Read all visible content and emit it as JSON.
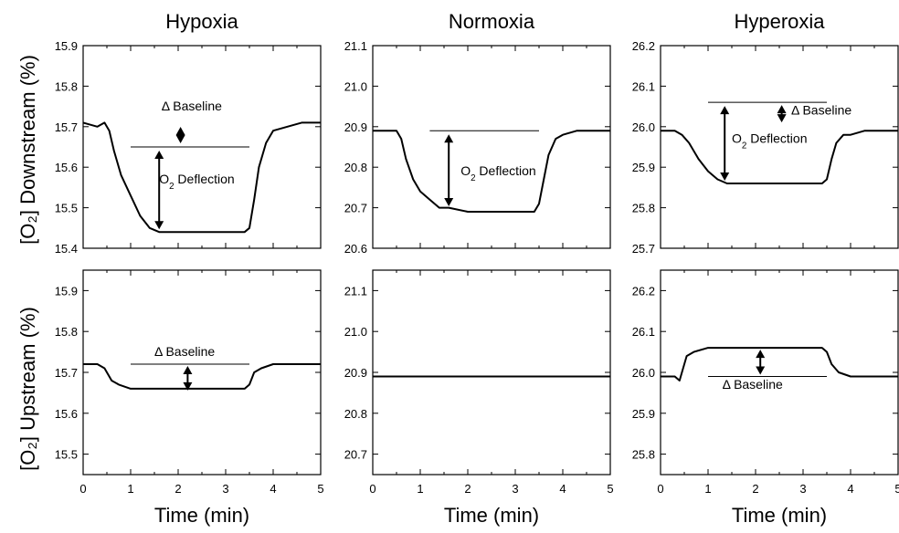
{
  "ylabel_top": "[O₂] Downstream  (%)",
  "ylabel_bottom": "[O₂] Upstream  (%)",
  "xlabel": "Time  (min)",
  "chart_data": [
    {
      "type": "line",
      "title": "Hypoxia",
      "row": "downstream",
      "xlim": [
        0,
        5
      ],
      "ylim": [
        15.4,
        15.9
      ],
      "xticks": [
        "0",
        "1",
        "2",
        "3",
        "4",
        "5"
      ],
      "yticks": [
        "15.4",
        "15.5",
        "15.6",
        "15.7",
        "15.8",
        "15.9"
      ],
      "series": [
        {
          "x": [
            0,
            0.3,
            0.45,
            0.55,
            0.65,
            0.8,
            1.0,
            1.2,
            1.4,
            1.6,
            2.0,
            2.5,
            3.0,
            3.4,
            3.5,
            3.6,
            3.7,
            3.85,
            4.0,
            4.3,
            4.6,
            5.0
          ],
          "y": [
            15.71,
            15.7,
            15.71,
            15.69,
            15.64,
            15.58,
            15.53,
            15.48,
            15.45,
            15.44,
            15.44,
            15.44,
            15.44,
            15.44,
            15.45,
            15.52,
            15.6,
            15.66,
            15.69,
            15.7,
            15.71,
            15.71
          ]
        }
      ],
      "baseline": {
        "x1": 1.0,
        "x2": 3.5,
        "y": 15.65
      },
      "annotations": [
        {
          "text": "Δ Baseline",
          "x": 1.65,
          "y": 15.74
        },
        {
          "text": "O₂ Deflection",
          "x": 1.6,
          "y": 15.56
        }
      ]
    },
    {
      "type": "line",
      "title": "Normoxia",
      "row": "downstream",
      "xlim": [
        0,
        5
      ],
      "ylim": [
        20.6,
        21.1
      ],
      "xticks": [
        "0",
        "1",
        "2",
        "3",
        "4",
        "5"
      ],
      "yticks": [
        "20.6",
        "20.7",
        "20.8",
        "20.9",
        "21.0",
        "21.1"
      ],
      "series": [
        {
          "x": [
            0,
            0.3,
            0.5,
            0.6,
            0.7,
            0.85,
            1.0,
            1.2,
            1.4,
            1.6,
            2.0,
            2.5,
            3.0,
            3.4,
            3.5,
            3.6,
            3.7,
            3.85,
            4.0,
            4.3,
            4.6,
            5.0
          ],
          "y": [
            20.89,
            20.89,
            20.89,
            20.87,
            20.82,
            20.77,
            20.74,
            20.72,
            20.7,
            20.7,
            20.69,
            20.69,
            20.69,
            20.69,
            20.71,
            20.77,
            20.83,
            20.87,
            20.88,
            20.89,
            20.89,
            20.89
          ]
        }
      ],
      "baseline": {
        "x1": 1.2,
        "x2": 3.5,
        "y": 20.89
      },
      "annotations": [
        {
          "text": "O₂ Deflection",
          "x": 1.85,
          "y": 20.78
        }
      ]
    },
    {
      "type": "line",
      "title": "Hyperoxia",
      "row": "downstream",
      "xlim": [
        0,
        5
      ],
      "ylim": [
        25.7,
        26.2
      ],
      "xticks": [
        "0",
        "1",
        "2",
        "3",
        "4",
        "5"
      ],
      "yticks": [
        "25.7",
        "25.8",
        "25.9",
        "26.0",
        "26.1",
        "26.2"
      ],
      "series": [
        {
          "x": [
            0,
            0.3,
            0.45,
            0.6,
            0.8,
            1.0,
            1.2,
            1.4,
            1.6,
            2.0,
            2.5,
            3.0,
            3.4,
            3.5,
            3.6,
            3.7,
            3.85,
            4.0,
            4.3,
            4.6,
            5.0
          ],
          "y": [
            25.99,
            25.99,
            25.98,
            25.96,
            25.92,
            25.89,
            25.87,
            25.86,
            25.86,
            25.86,
            25.86,
            25.86,
            25.86,
            25.87,
            25.92,
            25.96,
            25.98,
            25.98,
            25.99,
            25.99,
            25.99
          ]
        }
      ],
      "baseline": {
        "x1": 1.0,
        "x2": 3.5,
        "y": 26.06
      },
      "annotations": [
        {
          "text": "Δ Baseline",
          "x": 2.75,
          "y": 26.03
        },
        {
          "text": "O₂ Deflection",
          "x": 1.5,
          "y": 25.96
        }
      ]
    },
    {
      "type": "line",
      "title": "",
      "row": "upstream",
      "xlim": [
        0,
        5
      ],
      "ylim": [
        15.45,
        15.95
      ],
      "xticks": [
        "0",
        "1",
        "2",
        "3",
        "4",
        "5"
      ],
      "yticks": [
        "15.5",
        "15.6",
        "15.7",
        "15.8",
        "15.9"
      ],
      "series": [
        {
          "x": [
            0,
            0.3,
            0.45,
            0.6,
            0.75,
            1.0,
            1.5,
            2.0,
            2.5,
            3.0,
            3.4,
            3.5,
            3.6,
            3.75,
            4.0,
            4.5,
            5.0
          ],
          "y": [
            15.72,
            15.72,
            15.71,
            15.68,
            15.67,
            15.66,
            15.66,
            15.66,
            15.66,
            15.66,
            15.66,
            15.67,
            15.7,
            15.71,
            15.72,
            15.72,
            15.72
          ]
        }
      ],
      "baseline": {
        "x1": 1.0,
        "x2": 3.5,
        "y": 15.72
      },
      "annotations": [
        {
          "text": "Δ Baseline",
          "x": 1.5,
          "y": 15.74
        }
      ]
    },
    {
      "type": "line",
      "title": "",
      "row": "upstream",
      "xlim": [
        0,
        5
      ],
      "ylim": [
        20.65,
        21.15
      ],
      "xticks": [
        "0",
        "1",
        "2",
        "3",
        "4",
        "5"
      ],
      "yticks": [
        "20.7",
        "20.8",
        "20.9",
        "21.0",
        "21.1"
      ],
      "series": [
        {
          "x": [
            0,
            5
          ],
          "y": [
            20.89,
            20.89
          ]
        }
      ]
    },
    {
      "type": "line",
      "title": "",
      "row": "upstream",
      "xlim": [
        0,
        5
      ],
      "ylim": [
        25.75,
        26.25
      ],
      "xticks": [
        "0",
        "1",
        "2",
        "3",
        "4",
        "5"
      ],
      "yticks": [
        "25.8",
        "25.9",
        "26.0",
        "26.1",
        "26.2"
      ],
      "series": [
        {
          "x": [
            0,
            0.3,
            0.4,
            0.45,
            0.55,
            0.7,
            1.0,
            1.5,
            2.0,
            2.5,
            3.0,
            3.4,
            3.5,
            3.6,
            3.75,
            4.0,
            4.5,
            5.0
          ],
          "y": [
            25.99,
            25.99,
            25.98,
            26.0,
            26.04,
            26.05,
            26.06,
            26.06,
            26.06,
            26.06,
            26.06,
            26.06,
            26.05,
            26.02,
            26.0,
            25.99,
            25.99,
            25.99
          ]
        }
      ],
      "baseline": {
        "x1": 1.0,
        "x2": 3.5,
        "y": 25.99
      },
      "annotations": [
        {
          "text": "Δ Baseline",
          "x": 1.3,
          "y": 25.96
        }
      ]
    }
  ]
}
